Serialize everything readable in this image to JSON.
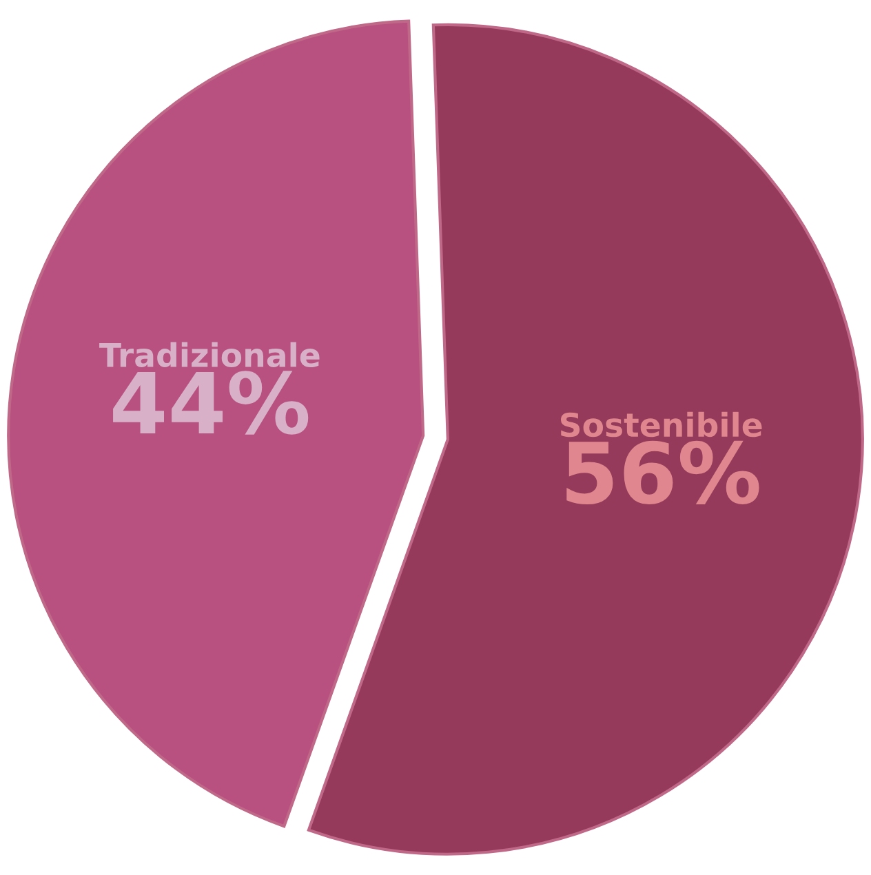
{
  "chart_data": {
    "type": "pie",
    "categories": [
      "Tradizionale",
      "Sostenibile"
    ],
    "values": [
      44,
      56
    ],
    "colors": [
      "#b85080",
      "#953a5a"
    ],
    "value_labels": [
      "44%",
      "56%"
    ],
    "legend": false
  }
}
